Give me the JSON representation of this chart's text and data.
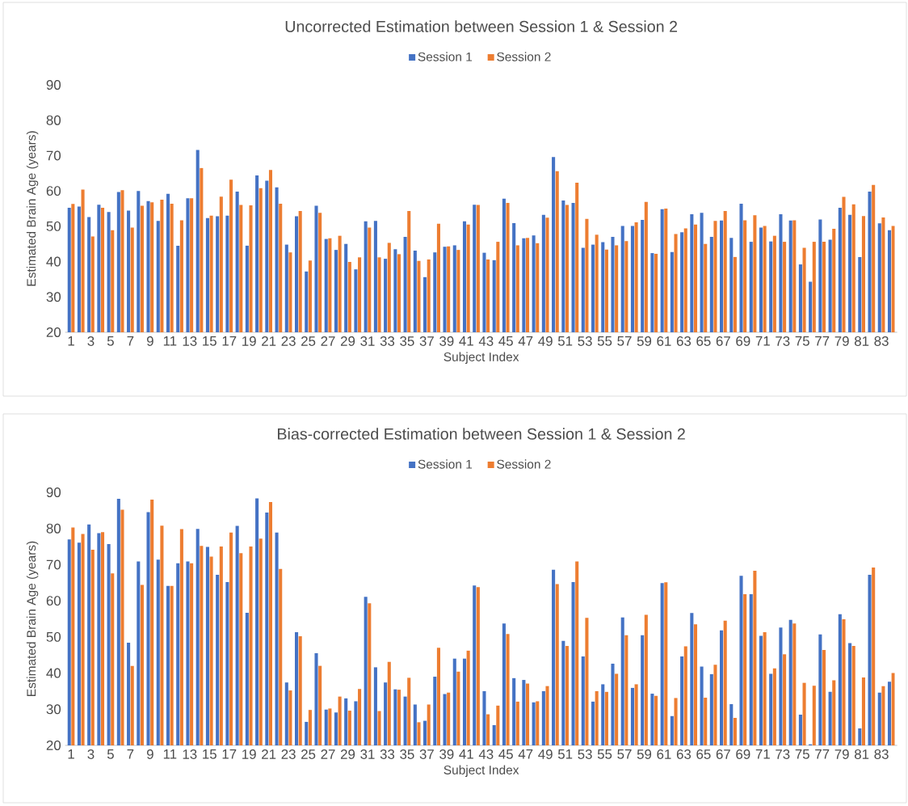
{
  "chart_data": [
    {
      "type": "bar",
      "title": "Uncorrected Estimation between Session 1 & Session 2",
      "xlabel": "Subject Index",
      "ylabel": "Estimated Brain Age (years)",
      "categories": [
        "1",
        null,
        "3",
        null,
        "5",
        null,
        "7",
        null,
        "9",
        null,
        "11",
        null,
        "13",
        null,
        "15",
        null,
        "17",
        null,
        "19",
        null,
        "21",
        null,
        "23",
        null,
        "25",
        null,
        "27",
        null,
        "29",
        null,
        "31",
        null,
        "33",
        null,
        "35",
        null,
        "37",
        null,
        "39",
        null,
        "41",
        null,
        "43",
        null,
        "45",
        null,
        "47",
        null,
        "49",
        null,
        "51",
        null,
        "53",
        null,
        "55",
        null,
        "57",
        null,
        "59",
        null,
        "61",
        null,
        "63",
        null,
        "65",
        null,
        "67",
        null,
        "69",
        null,
        "71",
        null,
        "73",
        null,
        "75",
        null,
        "77",
        null,
        "79",
        null,
        "81",
        null,
        "83",
        null
      ],
      "series": [
        {
          "name": "Session 1",
          "color": "#4472c4",
          "values": [
            55.2,
            55.6,
            52.6,
            56.1,
            54.0,
            59.7,
            54.4,
            60.0,
            57.1,
            51.5,
            59.2,
            44.5,
            57.9,
            71.6,
            52.3,
            52.8,
            53.0,
            59.8,
            44.5,
            64.4,
            62.9,
            61.0,
            44.8,
            52.8,
            37.2,
            55.8,
            46.4,
            43.3,
            45.0,
            37.8,
            51.4,
            51.5,
            40.8,
            43.5,
            47.0,
            43.1,
            35.6,
            42.6,
            44.2,
            44.6,
            51.4,
            56.1,
            42.5,
            40.4,
            57.8,
            50.9,
            46.6,
            47.4,
            53.2,
            69.6,
            57.3,
            56.6,
            43.9,
            44.8,
            45.5,
            47.0,
            50.1,
            50.1,
            51.8,
            42.4,
            54.8,
            42.7,
            48.3,
            53.4,
            53.8,
            47.0,
            51.6,
            46.7,
            56.4,
            45.6,
            49.6,
            45.7,
            53.4,
            51.6,
            39.2,
            34.3,
            51.9,
            46.2,
            55.2,
            53.2,
            41.3,
            59.8,
            50.8,
            48.9
          ]
        },
        {
          "name": "Session 2",
          "color": "#ed7d31",
          "values": [
            56.3,
            60.4,
            47.1,
            55.2,
            48.9,
            60.2,
            49.6,
            55.8,
            56.8,
            57.5,
            56.4,
            51.7,
            57.9,
            66.5,
            53.0,
            58.4,
            63.2,
            56.0,
            55.9,
            60.8,
            65.9,
            56.4,
            42.6,
            54.3,
            40.3,
            53.8,
            46.6,
            47.3,
            39.9,
            41.2,
            49.6,
            41.2,
            45.3,
            42.1,
            54.3,
            40.2,
            40.6,
            50.7,
            44.3,
            43.3,
            50.5,
            56.0,
            40.6,
            45.6,
            56.6,
            44.6,
            46.7,
            45.2,
            52.4,
            65.6,
            56.0,
            62.3,
            52.1,
            47.6,
            43.4,
            44.6,
            45.8,
            51.1,
            56.9,
            42.2,
            55.0,
            47.8,
            49.4,
            50.5,
            45.0,
            51.5,
            54.3,
            41.3,
            51.7,
            53.1,
            50.1,
            47.3,
            45.6,
            51.7,
            43.9,
            45.6,
            45.6,
            49.3,
            58.3,
            56.2,
            52.9,
            61.7,
            52.5,
            50.1
          ]
        }
      ],
      "ylim": [
        20,
        90
      ],
      "yticks": [
        20,
        30,
        40,
        50,
        60,
        70,
        80,
        90
      ],
      "legend": "top"
    },
    {
      "type": "bar",
      "title": "Bias-corrected Estimation between Session 1 & Session 2",
      "xlabel": "Subject Index",
      "ylabel": "Estimated Brain Age (years)",
      "categories": [
        "1",
        null,
        "3",
        null,
        "5",
        null,
        "7",
        null,
        "9",
        null,
        "11",
        null,
        "13",
        null,
        "15",
        null,
        "17",
        null,
        "19",
        null,
        "21",
        null,
        "23",
        null,
        "25",
        null,
        "27",
        null,
        "29",
        null,
        "31",
        null,
        "33",
        null,
        "35",
        null,
        "37",
        null,
        "39",
        null,
        "41",
        null,
        "43",
        null,
        "45",
        null,
        "47",
        null,
        "49",
        null,
        "51",
        null,
        "53",
        null,
        "55",
        null,
        "57",
        null,
        "59",
        null,
        "61",
        null,
        "63",
        null,
        "65",
        null,
        "67",
        null,
        "69",
        null,
        "71",
        null,
        "73",
        null,
        "75",
        null,
        "77",
        null,
        "79",
        null,
        "81",
        null,
        "83",
        null
      ],
      "series": [
        {
          "name": "Session 1",
          "color": "#4472c4",
          "values": [
            77.0,
            76.1,
            81.1,
            78.7,
            75.7,
            88.2,
            48.4,
            70.9,
            84.5,
            71.4,
            64.1,
            70.4,
            70.9,
            79.9,
            74.9,
            67.2,
            65.2,
            80.7,
            56.7,
            88.3,
            84.4,
            78.9,
            37.4,
            51.3,
            26.5,
            45.5,
            29.9,
            29.1,
            33.0,
            32.2,
            61.1,
            41.6,
            37.4,
            35.5,
            33.5,
            31.3,
            26.8,
            39.0,
            34.2,
            44.0,
            44.0,
            64.2,
            35.0,
            25.6,
            53.7,
            38.6,
            38.1,
            31.9,
            35.0,
            68.6,
            48.9,
            65.2,
            44.6,
            32.1,
            36.9,
            42.6,
            55.4,
            35.9,
            50.5,
            34.3,
            64.9,
            28.1,
            44.6,
            56.6,
            41.8,
            39.7,
            51.8,
            31.4,
            66.9,
            61.8,
            50.3,
            39.8,
            52.6,
            54.7,
            28.5,
            20.3,
            50.7,
            34.8,
            56.3,
            48.3,
            24.7,
            67.2,
            34.6,
            37.6
          ]
        },
        {
          "name": "Session 2",
          "color": "#ed7d31",
          "values": [
            80.3,
            78.5,
            74.1,
            79.0,
            67.6,
            85.2,
            42.0,
            64.4,
            88.0,
            80.8,
            64.1,
            79.8,
            70.4,
            75.2,
            72.2,
            75.0,
            78.9,
            73.2,
            75.0,
            77.2,
            87.3,
            68.8,
            35.2,
            50.2,
            29.8,
            42.0,
            30.2,
            33.5,
            29.6,
            35.6,
            59.3,
            29.5,
            43.1,
            35.4,
            38.7,
            26.4,
            31.3,
            47.0,
            34.6,
            40.4,
            46.2,
            63.8,
            28.6,
            31.0,
            50.8,
            32.1,
            37.1,
            32.2,
            36.4,
            64.6,
            47.5,
            70.9,
            55.3,
            35.0,
            34.8,
            39.8,
            50.5,
            36.9,
            56.1,
            33.7,
            65.1,
            33.1,
            47.4,
            53.5,
            33.2,
            42.3,
            54.5,
            27.6,
            61.8,
            68.3,
            51.3,
            41.3,
            45.2,
            53.7,
            37.3,
            36.5,
            46.4,
            38.0,
            54.9,
            47.5,
            38.8,
            69.2,
            36.4,
            40.0
          ]
        }
      ],
      "ylim": [
        20,
        90
      ],
      "yticks": [
        20,
        30,
        40,
        50,
        60,
        70,
        80,
        90
      ],
      "legend": "top"
    }
  ]
}
